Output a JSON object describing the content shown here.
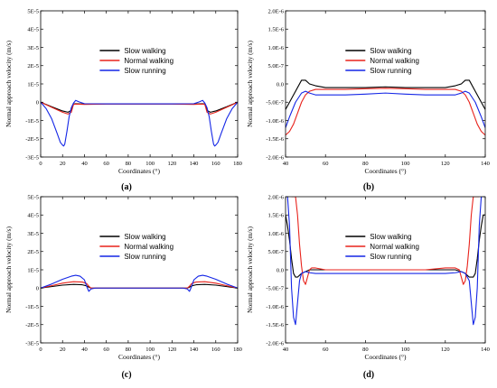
{
  "chart_data": [
    {
      "type": "line",
      "panel_label": "(a)",
      "xlabel": "Coordinates (°)",
      "ylabel": "Normal approach velocity (m/s)",
      "xlim": [
        0,
        180
      ],
      "ylim": [
        -3e-05,
        5e-05
      ],
      "xticks": [
        0,
        20,
        40,
        60,
        80,
        100,
        120,
        140,
        160,
        180
      ],
      "xtick_labels": [
        "0",
        "20",
        "40",
        "60",
        "80",
        "100",
        "120",
        "140",
        "160",
        "180"
      ],
      "yticks": [
        -3e-05,
        -2e-05,
        -1e-05,
        0,
        1e-05,
        2e-05,
        3e-05,
        4e-05,
        5e-05
      ],
      "ytick_labels": [
        "-3E-5",
        "-2E-5",
        "-1E-5",
        "0",
        "1E-5",
        "2E-5",
        "3E-5",
        "4E-5",
        "5E-5"
      ],
      "legend_position": "upper-center",
      "series": [
        {
          "name": "Slow walking",
          "color": "#000000",
          "x": [
            0,
            10,
            20,
            25,
            28,
            30,
            32,
            40,
            60,
            90,
            120,
            140,
            148,
            150,
            152,
            155,
            160,
            170,
            180
          ],
          "y": [
            0,
            -2.5e-06,
            -4.8e-06,
            -5.5e-06,
            -4.5e-06,
            -1e-06,
            -8e-07,
            -1e-06,
            -9e-07,
            -9e-07,
            -9e-07,
            -1e-06,
            -8e-07,
            -1e-06,
            -4.5e-06,
            -5.5e-06,
            -4.8e-06,
            -2.5e-06,
            0
          ]
        },
        {
          "name": "Normal walking",
          "color": "#e8231c",
          "x": [
            0,
            10,
            20,
            25,
            28,
            30,
            32,
            40,
            60,
            90,
            120,
            140,
            148,
            150,
            152,
            155,
            160,
            170,
            180
          ],
          "y": [
            0,
            -2.8e-06,
            -5.5e-06,
            -6.5e-06,
            -5.5e-06,
            -1.2e-06,
            -1e-06,
            -1.2e-06,
            -1e-06,
            -1e-06,
            -1e-06,
            -1.2e-06,
            -1e-06,
            -1.2e-06,
            -5.5e-06,
            -6.5e-06,
            -5.5e-06,
            -2.8e-06,
            0
          ]
        },
        {
          "name": "Slow running",
          "color": "#1426e6",
          "x": [
            0,
            5,
            10,
            15,
            18,
            20,
            21,
            22,
            24,
            26,
            28,
            30,
            32,
            35,
            40,
            60,
            90,
            120,
            140,
            145,
            148,
            150,
            152,
            154,
            156,
            158,
            159,
            160,
            162,
            165,
            170,
            175,
            180
          ],
          "y": [
            0,
            -3.5e-06,
            -9e-06,
            -1.7e-05,
            -2.2e-05,
            -2.35e-05,
            -2.4e-05,
            -2.3e-05,
            -1.6e-05,
            -8e-06,
            -3e-06,
            -5e-07,
            1e-06,
            2e-07,
            -8e-07,
            -9e-07,
            -9e-07,
            -9e-07,
            -8e-07,
            2e-07,
            1e-06,
            -5e-07,
            -3e-06,
            -8e-06,
            -1.6e-05,
            -2.3e-05,
            -2.4e-05,
            -2.35e-05,
            -2.2e-05,
            -1.7e-05,
            -9e-06,
            -3.5e-06,
            0
          ]
        }
      ]
    },
    {
      "type": "line",
      "panel_label": "(b)",
      "xlabel": "Coordinates (°)",
      "ylabel": "Normal approach velocity (m/s)",
      "xlim": [
        40,
        140
      ],
      "ylim": [
        -2e-06,
        2e-06
      ],
      "xticks": [
        40,
        60,
        80,
        100,
        120,
        140
      ],
      "xtick_labels": [
        "40",
        "60",
        "80",
        "100",
        "120",
        "140"
      ],
      "yticks": [
        -2e-06,
        -1.5e-06,
        -1e-06,
        -5e-07,
        0,
        5e-07,
        1e-06,
        1.5e-06,
        2e-06
      ],
      "ytick_labels": [
        "-2.0E-6",
        "-1.5E-6",
        "-1.0E-6",
        "-5.0E-7",
        "0.0",
        "5.0E-7",
        "1.0E-6",
        "1.5E-6",
        "2.0E-6"
      ],
      "legend_position": "upper-center",
      "series": [
        {
          "name": "Slow walking",
          "color": "#000000",
          "x": [
            40,
            42,
            45,
            48,
            50,
            52,
            55,
            60,
            70,
            80,
            90,
            100,
            110,
            120,
            125,
            128,
            130,
            132,
            135,
            138,
            140
          ],
          "y": [
            -7e-07,
            -5e-07,
            -2e-07,
            1e-07,
            1e-07,
            0,
            -5e-08,
            -1e-07,
            -1e-07,
            -1e-07,
            -8e-08,
            -1e-07,
            -1e-07,
            -1e-07,
            -5e-08,
            0,
            1e-07,
            1e-07,
            -2e-07,
            -5e-07,
            -7e-07
          ]
        },
        {
          "name": "Normal walking",
          "color": "#e8231c",
          "x": [
            40,
            42,
            44,
            46,
            48,
            50,
            52,
            55,
            60,
            70,
            80,
            90,
            100,
            110,
            120,
            125,
            128,
            130,
            132,
            134,
            136,
            138,
            140
          ],
          "y": [
            -1.4e-06,
            -1.3e-06,
            -1.1e-06,
            -8e-07,
            -5e-07,
            -3e-07,
            -2e-07,
            -1.5e-07,
            -1.5e-07,
            -1.5e-07,
            -1.3e-07,
            -1.2e-07,
            -1.3e-07,
            -1.5e-07,
            -1.5e-07,
            -1.5e-07,
            -2e-07,
            -3e-07,
            -5e-07,
            -8e-07,
            -1.1e-06,
            -1.3e-06,
            -1.4e-06
          ]
        },
        {
          "name": "Slow running",
          "color": "#1426e6",
          "x": [
            40,
            42,
            45,
            48,
            50,
            52,
            55,
            60,
            70,
            80,
            90,
            100,
            110,
            120,
            125,
            128,
            130,
            132,
            135,
            138,
            140
          ],
          "y": [
            -1.2e-06,
            -9e-07,
            -5e-07,
            -2.5e-07,
            -2e-07,
            -2.5e-07,
            -3e-07,
            -3e-07,
            -3e-07,
            -2.8e-07,
            -2.5e-07,
            -2.8e-07,
            -3e-07,
            -3e-07,
            -3e-07,
            -2.5e-07,
            -2e-07,
            -2.5e-07,
            -5e-07,
            -9e-07,
            -1.2e-06
          ]
        }
      ]
    },
    {
      "type": "line",
      "panel_label": "(c)",
      "xlabel": "Coordinates (°)",
      "ylabel": "Normal approach velocity (m/s)",
      "xlim": [
        0,
        180
      ],
      "ylim": [
        -3e-05,
        5e-05
      ],
      "xticks": [
        0,
        20,
        40,
        60,
        80,
        100,
        120,
        140,
        160,
        180
      ],
      "xtick_labels": [
        "0",
        "20",
        "40",
        "60",
        "80",
        "100",
        "120",
        "140",
        "160",
        "180"
      ],
      "yticks": [
        -3e-05,
        -2e-05,
        -1e-05,
        0,
        1e-05,
        2e-05,
        3e-05,
        4e-05,
        5e-05
      ],
      "ytick_labels": [
        "-3E-5",
        "-2E-5",
        "-1E-5",
        "0",
        "1E-5",
        "2E-5",
        "3E-5",
        "4E-5",
        "5E-5"
      ],
      "legend_position": "upper-center",
      "series": [
        {
          "name": "Slow walking",
          "color": "#000000",
          "x": [
            0,
            10,
            20,
            30,
            38,
            42,
            44,
            46,
            50,
            90,
            130,
            134,
            136,
            138,
            142,
            150,
            160,
            170,
            180
          ],
          "y": [
            0,
            8e-07,
            1.6e-06,
            2e-06,
            1.8e-06,
            1.2e-06,
            5e-07,
            0,
            0,
            0,
            0,
            0,
            5e-07,
            1.2e-06,
            1.8e-06,
            2e-06,
            1.6e-06,
            8e-07,
            0
          ]
        },
        {
          "name": "Normal walking",
          "color": "#e8231c",
          "x": [
            0,
            10,
            20,
            30,
            38,
            42,
            44,
            46,
            50,
            90,
            130,
            134,
            136,
            138,
            142,
            150,
            160,
            170,
            180
          ],
          "y": [
            0,
            1.3e-06,
            2.7e-06,
            3.5e-06,
            3.3e-06,
            2.5e-06,
            1e-06,
            0,
            0,
            0,
            0,
            0,
            1e-06,
            2.5e-06,
            3.3e-06,
            3.5e-06,
            2.7e-06,
            1.3e-06,
            0
          ]
        },
        {
          "name": "Slow running",
          "color": "#1426e6",
          "x": [
            0,
            10,
            20,
            28,
            32,
            36,
            40,
            42,
            44,
            46,
            50,
            90,
            130,
            134,
            136,
            138,
            140,
            144,
            148,
            152,
            160,
            170,
            180
          ],
          "y": [
            0,
            2.2e-06,
            4.8e-06,
            6.5e-06,
            7e-06,
            6.5e-06,
            4.5e-06,
            1e-06,
            -1.8e-06,
            -5e-07,
            0,
            0,
            0,
            -5e-07,
            -1.8e-06,
            1e-06,
            4.5e-06,
            6.5e-06,
            7e-06,
            6.5e-06,
            4.8e-06,
            2.2e-06,
            0
          ]
        }
      ]
    },
    {
      "type": "line",
      "panel_label": "(d)",
      "xlabel": "Coordinates (°)",
      "ylabel": "Normal approach velocity (m/s)",
      "xlim": [
        40,
        140
      ],
      "ylim": [
        -2e-06,
        2e-06
      ],
      "xticks": [
        40,
        60,
        80,
        100,
        120,
        140
      ],
      "xtick_labels": [
        "40",
        "60",
        "80",
        "100",
        "120",
        "140"
      ],
      "yticks": [
        -2e-06,
        -1.5e-06,
        -1e-06,
        -5e-07,
        0,
        5e-07,
        1e-06,
        1.5e-06,
        2e-06
      ],
      "ytick_labels": [
        "-2.0E-6",
        "-1.5E-6",
        "-1.0E-6",
        "-5.0E-7",
        "0.0",
        "5.0E-7",
        "1.0E-6",
        "1.5E-6",
        "2.0E-6"
      ],
      "legend_position": "upper-center",
      "series": [
        {
          "name": "Slow walking",
          "color": "#000000",
          "x": [
            40,
            41,
            42,
            43,
            44,
            45,
            46,
            48,
            50,
            52,
            55,
            60,
            70,
            80,
            90,
            100,
            110,
            120,
            125,
            128,
            130,
            132,
            134,
            135,
            136,
            137,
            138,
            139,
            140
          ],
          "y": [
            1.5e-06,
            1.2e-06,
            8e-07,
            3e-07,
            -1e-07,
            -2e-07,
            -2e-07,
            -1e-07,
            -5e-08,
            0,
            0,
            0,
            0,
            0,
            0,
            0,
            0,
            0,
            0,
            -5e-08,
            -1e-07,
            -2e-07,
            -2e-07,
            -1e-07,
            3e-07,
            8e-07,
            1.2e-06,
            1.5e-06,
            1.5e-06
          ]
        },
        {
          "name": "Normal walking",
          "color": "#e8231c",
          "x": [
            43,
            45,
            46,
            47,
            48,
            49,
            50,
            51,
            52,
            53,
            55,
            60,
            70,
            80,
            90,
            100,
            110,
            120,
            125,
            127,
            128,
            129,
            130,
            131,
            132,
            133,
            134,
            135,
            137
          ],
          "y": [
            2e-06,
            2e-06,
            1.5e-06,
            7e-07,
            1e-07,
            -3e-07,
            -4e-07,
            -2e-07,
            0,
            5e-08,
            5e-08,
            0,
            0,
            0,
            0,
            0,
            0,
            5e-08,
            5e-08,
            0,
            -2e-07,
            -4e-07,
            -3e-07,
            1e-07,
            7e-07,
            1.5e-06,
            2e-06,
            2e-06,
            2e-06
          ]
        },
        {
          "name": "Slow running",
          "color": "#1426e6",
          "x": [
            40,
            41,
            42,
            43,
            44,
            45,
            46,
            47,
            48,
            50,
            52,
            55,
            60,
            70,
            80,
            90,
            100,
            110,
            120,
            125,
            128,
            130,
            132,
            133,
            134,
            135,
            136,
            137,
            138,
            139,
            140
          ],
          "y": [
            2e-06,
            2e-06,
            1.2e-06,
            -5e-07,
            -1.3e-06,
            -1.5e-06,
            -9e-07,
            -3e-07,
            -1e-07,
            -5e-08,
            -8e-08,
            -1e-07,
            -1e-07,
            -1e-07,
            -1e-07,
            -1e-07,
            -1e-07,
            -1e-07,
            -1e-07,
            -8e-08,
            -5e-08,
            -1e-07,
            -3e-07,
            -9e-07,
            -1.5e-06,
            -1.3e-06,
            -5e-07,
            1.2e-06,
            2e-06,
            2e-06,
            2e-06
          ]
        }
      ]
    }
  ]
}
